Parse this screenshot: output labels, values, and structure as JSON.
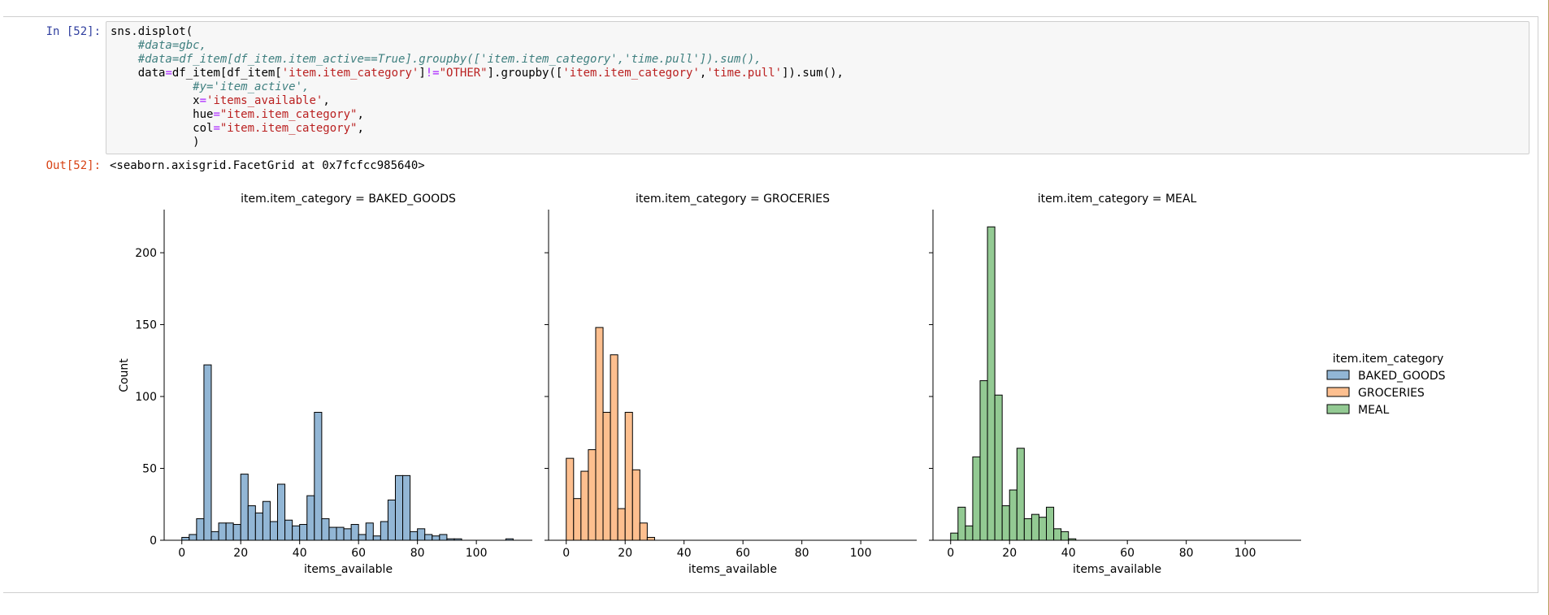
{
  "notebook": {
    "in_prompt": "In [52]:",
    "out_prompt": "Out[52]:",
    "code_lines": [
      [
        {
          "t": "sns.displot(",
          "c": ""
        }
      ],
      [
        {
          "t": "    ",
          "c": ""
        },
        {
          "t": "#data=gbc,",
          "c": "cm"
        }
      ],
      [
        {
          "t": "    ",
          "c": ""
        },
        {
          "t": "#data=df_item[df_item.item_active==True].groupby(['item.item_category','time.pull']).sum(),",
          "c": "cm"
        }
      ],
      [
        {
          "t": "    data",
          "c": ""
        },
        {
          "t": "=",
          "c": "op"
        },
        {
          "t": "df_item[df_item[",
          "c": ""
        },
        {
          "t": "'item.item_category'",
          "c": "st"
        },
        {
          "t": "]",
          "c": ""
        },
        {
          "t": "!=",
          "c": "op"
        },
        {
          "t": "\"OTHER\"",
          "c": "st"
        },
        {
          "t": "].groupby([",
          "c": ""
        },
        {
          "t": "'item.item_category'",
          "c": "st"
        },
        {
          "t": ",",
          "c": ""
        },
        {
          "t": "'time.pull'",
          "c": "st"
        },
        {
          "t": "]).sum(),",
          "c": ""
        }
      ],
      [
        {
          "t": "            ",
          "c": ""
        },
        {
          "t": "#y='item_active',",
          "c": "cm"
        }
      ],
      [
        {
          "t": "            x",
          "c": ""
        },
        {
          "t": "=",
          "c": "op"
        },
        {
          "t": "'items_available'",
          "c": "st"
        },
        {
          "t": ",",
          "c": ""
        }
      ],
      [
        {
          "t": "            hue",
          "c": ""
        },
        {
          "t": "=",
          "c": "op"
        },
        {
          "t": "\"item.item_category\"",
          "c": "st"
        },
        {
          "t": ",",
          "c": ""
        }
      ],
      [
        {
          "t": "            col",
          "c": ""
        },
        {
          "t": "=",
          "c": "op"
        },
        {
          "t": "\"item.item_category\"",
          "c": "st"
        },
        {
          "t": ",",
          "c": ""
        }
      ],
      [
        {
          "t": "            )",
          "c": ""
        }
      ]
    ],
    "output_text": "<seaborn.axisgrid.FacetGrid at 0x7fcfcc985640>"
  },
  "chart_data": {
    "type": "bar",
    "shared_x_label": "items_available",
    "shared_y_label": "Count",
    "xlim": [
      -6,
      119
    ],
    "ylim": [
      0,
      230
    ],
    "x_ticks": [
      0,
      20,
      40,
      60,
      80,
      100
    ],
    "y_ticks": [
      0,
      50,
      100,
      150,
      200
    ],
    "legend": {
      "title": "item.item_category",
      "placement": "right",
      "entries": [
        "BAKED_GOODS",
        "GROCERIES",
        "MEAL"
      ]
    },
    "panels": [
      {
        "title": "item.item_category = BAKED_GOODS",
        "fill": "#92b6d5",
        "bin_width": 2.5,
        "bin_start": 0,
        "counts": [
          2,
          4,
          15,
          122,
          6,
          12,
          12,
          11,
          46,
          24,
          19,
          27,
          13,
          39,
          14,
          10,
          11,
          31,
          89,
          15,
          9,
          9,
          8,
          11,
          4,
          12,
          3,
          13,
          28,
          45,
          45,
          6,
          8,
          4,
          3,
          4,
          1,
          1,
          0,
          0,
          0,
          0,
          0,
          0,
          1
        ]
      },
      {
        "title": "item.item_category = GROCERIES",
        "fill": "#fdbf8f",
        "bin_width": 2.5,
        "bin_start": 0,
        "counts": [
          57,
          29,
          48,
          63,
          148,
          89,
          129,
          22,
          89,
          49,
          12,
          2
        ]
      },
      {
        "title": "item.item_category = MEAL",
        "fill": "#93ca93",
        "bin_width": 2.5,
        "bin_start": 0,
        "counts": [
          5,
          23,
          10,
          58,
          111,
          218,
          101,
          24,
          35,
          64,
          15,
          18,
          16,
          23,
          8,
          6,
          1
        ]
      }
    ]
  }
}
